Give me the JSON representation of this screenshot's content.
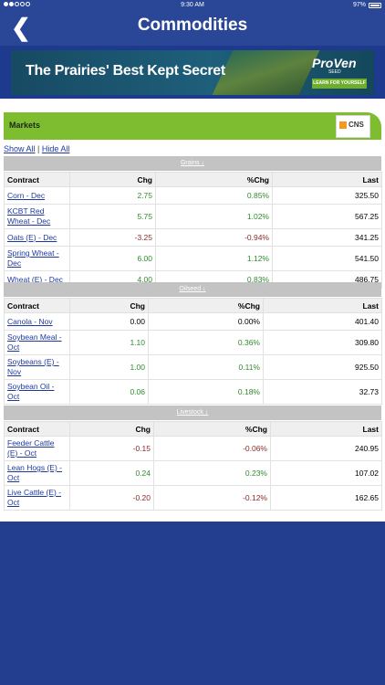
{
  "status": {
    "time": "9:30 AM",
    "battery": "97%"
  },
  "nav": {
    "title": "Commodities",
    "back_glyph": "❮"
  },
  "ad": {
    "headline": "The Prairies' Best Kept Secret",
    "logo": "ProVen",
    "logo_sub": "SEED",
    "cta": "LEARN FOR YOURSELF"
  },
  "markets": {
    "title": "Markets",
    "provider": "CNS"
  },
  "links": {
    "show_all": "Show All",
    "separator": "|",
    "hide_all": "Hide All"
  },
  "headers": {
    "contract": "Contract",
    "chg": "Chg",
    "pct_chg": "%Chg",
    "last": "Last"
  },
  "sections": [
    {
      "label": "Grains ↓",
      "rows": [
        {
          "contract": "Corn - Dec",
          "chg": "2.75",
          "pct": "0.85%",
          "last": "325.50",
          "dir": "pos"
        },
        {
          "contract": "KCBT Red Wheat - Dec",
          "chg": "5.75",
          "pct": "1.02%",
          "last": "567.25",
          "dir": "pos"
        },
        {
          "contract": "Oats (E) - Dec",
          "chg": "-3.25",
          "pct": "-0.94%",
          "last": "341.25",
          "dir": "neg"
        },
        {
          "contract": "Spring Wheat - Dec",
          "chg": "6.00",
          "pct": "1.12%",
          "last": "541.50",
          "dir": "pos"
        },
        {
          "contract": "Wheat (E) - Dec",
          "chg": "4.00",
          "pct": "0.83%",
          "last": "486.75",
          "dir": "pos"
        }
      ]
    },
    {
      "label": "Oilseed ↓",
      "rows": [
        {
          "contract": "Canola - Nov",
          "chg": "0.00",
          "pct": "0.00%",
          "last": "401.40",
          "dir": "zer"
        },
        {
          "contract": "Soybean Meal - Oct",
          "chg": "1.10",
          "pct": "0.36%",
          "last": "309.80",
          "dir": "pos"
        },
        {
          "contract": "Soybeans (E) - Nov",
          "chg": "1.00",
          "pct": "0.11%",
          "last": "925.50",
          "dir": "pos"
        },
        {
          "contract": "Soybean Oil - Oct",
          "chg": "0.06",
          "pct": "0.18%",
          "last": "32.73",
          "dir": "pos"
        }
      ]
    },
    {
      "label": "Livestock ↓",
      "rows": [
        {
          "contract": "Feeder Cattle (E) - Oct",
          "chg": "-0.15",
          "pct": "-0.06%",
          "last": "240.95",
          "dir": "neg"
        },
        {
          "contract": "Lean Hogs (E) - Oct",
          "chg": "0.24",
          "pct": "0.23%",
          "last": "107.02",
          "dir": "pos"
        },
        {
          "contract": "Live Cattle (E) - Oct",
          "chg": "-0.20",
          "pct": "-0.12%",
          "last": "162.65",
          "dir": "neg"
        }
      ]
    }
  ],
  "colors": {
    "nav_blue": "#2a4797",
    "accent_green": "#7ebd2f",
    "positive": "#2e8b2e",
    "negative": "#8b2a2a",
    "link": "#1f3a9f"
  }
}
